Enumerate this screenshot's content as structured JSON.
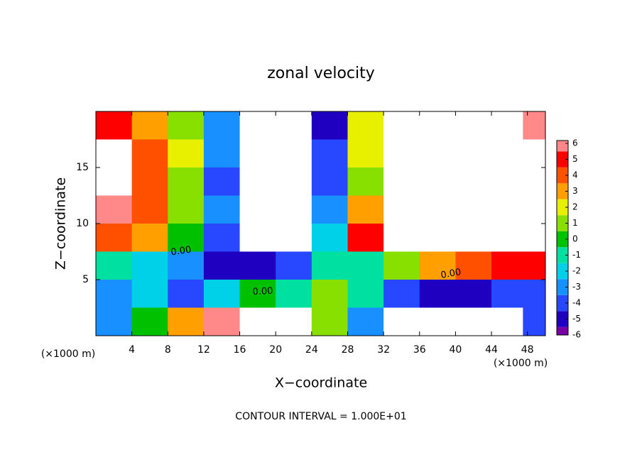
{
  "chart_data": {
    "type": "contour",
    "title": "zonal velocity",
    "x_label": "X−coordinate",
    "y_label": "Z−coordinate",
    "x_unit_label": "(×1000 m)",
    "y_unit_label": "(×1000 m)",
    "footer": "CONTOUR INTERVAL = 1.000E+01",
    "contour_labels": [
      "0.00",
      "0.00",
      "0.00"
    ],
    "xlim": [
      0,
      50
    ],
    "ylim": [
      0,
      20
    ],
    "xticks": [
      4,
      8,
      12,
      16,
      20,
      24,
      28,
      32,
      36,
      40,
      44,
      48
    ],
    "yticks": [
      5,
      10,
      15
    ],
    "x": [
      2,
      6,
      10,
      14,
      18,
      22,
      26,
      30,
      34,
      38,
      42,
      46,
      49
    ],
    "y": [
      18.75,
      16.25,
      13.75,
      11.25,
      8.75,
      6.25,
      3.75,
      1.25
    ],
    "z": [
      [
        5,
        3,
        1,
        -3,
        -10,
        -10,
        -5,
        2,
        10,
        10,
        10,
        10,
        6
      ],
      [
        10,
        4,
        2,
        -3,
        -10,
        -10,
        -4,
        2,
        10,
        10,
        10,
        10,
        10
      ],
      [
        10,
        4,
        1,
        -4,
        -10,
        -10,
        -4,
        1,
        10,
        10,
        10,
        10,
        10
      ],
      [
        6,
        4,
        1,
        -3,
        -10,
        -10,
        -3,
        3,
        10,
        10,
        10,
        10,
        10
      ],
      [
        4,
        3,
        0,
        -4,
        -10,
        -10,
        -2,
        5,
        10,
        10,
        10,
        10,
        10
      ],
      [
        -1,
        -2,
        -3,
        -5,
        -5,
        -4,
        -1,
        -1,
        1,
        3,
        4,
        5,
        5
      ],
      [
        -3,
        -2,
        -4,
        -2,
        0,
        -1,
        1,
        -1,
        -4,
        -5,
        -5,
        -4,
        -4
      ],
      [
        -3,
        0,
        3,
        6,
        10,
        10,
        1,
        -3,
        -10,
        -10,
        -10,
        -10,
        -4
      ]
    ],
    "levels": [
      -6,
      -5,
      -4,
      -3,
      -2,
      -1,
      0,
      1,
      2,
      3,
      4,
      5,
      6
    ],
    "colors": [
      "#7800a0",
      "#2000c0",
      "#2848ff",
      "#1890ff",
      "#00d0e8",
      "#00e0a0",
      "#00c000",
      "#88e000",
      "#e8f000",
      "#ffa000",
      "#ff5000",
      "#ff0000",
      "#ff8888"
    ],
    "out_of_range_color": "#ffffff"
  }
}
